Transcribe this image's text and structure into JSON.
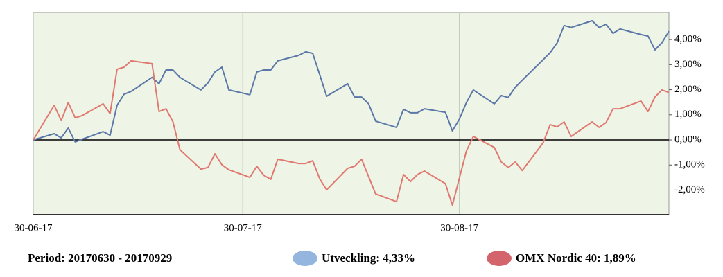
{
  "chart_data": {
    "type": "line",
    "period": "Period: 20170630 - 20170929",
    "x": [
      "30-06-17",
      "03-07-17",
      "04-07-17",
      "05-07-17",
      "06-07-17",
      "07-07-17",
      "10-07-17",
      "11-07-17",
      "12-07-17",
      "13-07-17",
      "14-07-17",
      "17-07-17",
      "18-07-17",
      "19-07-17",
      "20-07-17",
      "21-07-17",
      "24-07-17",
      "25-07-17",
      "26-07-17",
      "27-07-17",
      "28-07-17",
      "31-07-17",
      "01-08-17",
      "02-08-17",
      "03-08-17",
      "04-08-17",
      "07-08-17",
      "08-08-17",
      "09-08-17",
      "10-08-17",
      "11-08-17",
      "14-08-17",
      "15-08-17",
      "16-08-17",
      "17-08-17",
      "18-08-17",
      "21-08-17",
      "22-08-17",
      "23-08-17",
      "24-08-17",
      "25-08-17",
      "28-08-17",
      "29-08-17",
      "30-08-17",
      "31-08-17",
      "01-09-17",
      "04-09-17",
      "05-09-17",
      "06-09-17",
      "07-09-17",
      "08-09-17",
      "11-09-17",
      "12-09-17",
      "13-09-17",
      "14-09-17",
      "15-09-17",
      "18-09-17",
      "19-09-17",
      "20-09-17",
      "21-09-17",
      "22-09-17",
      "25-09-17",
      "26-09-17",
      "27-09-17",
      "28-09-17",
      "29-09-17"
    ],
    "series": [
      {
        "name": "Utveckling: 4,33%",
        "color": "#5b77a8",
        "legend_color": "#93b5de",
        "values": [
          0,
          0.25,
          0.08,
          0.47,
          -0.08,
          0.03,
          0.33,
          0.19,
          1.38,
          1.82,
          1.93,
          2.49,
          2.24,
          2.79,
          2.79,
          2.49,
          1.99,
          2.27,
          2.71,
          2.9,
          1.99,
          1.8,
          2.71,
          2.79,
          2.79,
          3.15,
          3.37,
          3.51,
          3.45,
          2.6,
          1.74,
          2.24,
          1.71,
          1.71,
          1.44,
          0.75,
          0.5,
          1.22,
          1.08,
          1.08,
          1.24,
          1.1,
          0.36,
          0.83,
          1.49,
          1.99,
          1.44,
          1.77,
          1.69,
          2.1,
          2.38,
          3.2,
          3.48,
          3.87,
          4.56,
          4.48,
          4.75,
          4.48,
          4.61,
          4.25,
          4.42,
          4.2,
          4.14,
          3.59,
          3.87,
          4.33
        ]
      },
      {
        "name": "OMX Nordic 40: 1,89%",
        "color": "#e07870",
        "legend_color": "#d4646c",
        "values": [
          0,
          1.38,
          0.77,
          1.49,
          0.88,
          0.97,
          1.44,
          1.05,
          2.82,
          2.9,
          3.15,
          3.04,
          1.13,
          1.24,
          0.72,
          -0.39,
          -1.16,
          -1.1,
          -0.55,
          -0.99,
          -1.19,
          -1.49,
          -1.05,
          -1.41,
          -1.57,
          -0.77,
          -0.94,
          -0.94,
          -0.83,
          -1.55,
          -1.99,
          -1.13,
          -1.05,
          -0.77,
          -1.46,
          -2.15,
          -2.46,
          -1.38,
          -1.66,
          -1.38,
          -1.24,
          -1.74,
          -2.6,
          -1.52,
          -0.44,
          0.14,
          -0.3,
          -0.88,
          -1.1,
          -0.88,
          -1.22,
          -0.11,
          0.61,
          0.52,
          0.72,
          0.14,
          0.72,
          0.5,
          0.69,
          1.24,
          1.24,
          1.55,
          1.13,
          1.71,
          1.99,
          1.89
        ]
      }
    ],
    "xlim": [
      "30-06-17",
      "29-09-17"
    ],
    "xticks": [
      "30-06-17",
      "30-07-17",
      "30-08-17"
    ],
    "ylim": [
      -2.98,
      5.08
    ],
    "yticks": [
      {
        "value": 4,
        "label": "4,00%"
      },
      {
        "value": 3,
        "label": "3,00%"
      },
      {
        "value": 2,
        "label": "2,00%"
      },
      {
        "value": 1,
        "label": "1,00%"
      },
      {
        "value": 0,
        "label": "0,00%"
      },
      {
        "value": -1,
        "label": "-1,00%"
      },
      {
        "value": -2,
        "label": "-2,00%"
      }
    ],
    "grid": true
  }
}
